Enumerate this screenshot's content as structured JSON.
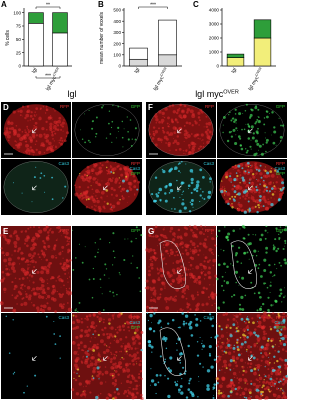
{
  "chart_data": [
    {
      "type": "stacked-bar",
      "panel": "A",
      "ylabel": "% cells",
      "categories": [
        "lgl",
        "lgl myc"
      ],
      "category_sup": [
        null,
        "OVER"
      ],
      "series": [
        {
          "color": "#ffffff",
          "values": [
            80,
            62
          ]
        },
        {
          "color": "#2e9e3a",
          "values": [
            20,
            38
          ]
        }
      ],
      "ylim": [
        0,
        105
      ],
      "yticks": [
        0,
        25,
        50,
        75,
        100
      ],
      "annotations": [
        "**",
        "***"
      ]
    },
    {
      "type": "stacked-bar",
      "panel": "B",
      "ylabel": "mean number of voxels",
      "categories": [
        "lgl",
        "lgl myc"
      ],
      "category_sup": [
        null,
        "OVER"
      ],
      "series": [
        {
          "color": "#d9d9d9",
          "values": [
            60,
            100
          ]
        },
        {
          "color": "#ffffff",
          "values": [
            100,
            310
          ]
        }
      ],
      "ylim": [
        0,
        500
      ],
      "yticks": [
        0,
        100,
        200,
        300,
        400,
        500
      ],
      "annotations": [
        "***"
      ]
    },
    {
      "type": "stacked-bar",
      "panel": "C",
      "categories": [
        "lgl",
        "lgl myc"
      ],
      "category_sup": [
        null,
        "OVER"
      ],
      "series": [
        {
          "color": "#f2ee7a",
          "values": [
            600,
            2000
          ]
        },
        {
          "color": "#2e9e3a",
          "values": [
            250,
            1300
          ]
        }
      ],
      "ylim": [
        0,
        4000
      ],
      "yticks": [
        0,
        1000,
        2000,
        3000,
        4000
      ]
    }
  ],
  "figure": {
    "headers": [
      {
        "text": "lgl"
      },
      {
        "text": "lgl myc",
        "sup": "OVER"
      }
    ],
    "panel_letters": [
      "D",
      "E",
      "F",
      "G"
    ],
    "channels": {
      "rfp": "RFP",
      "gfp": "GFP",
      "cas3": "Cas3"
    }
  }
}
